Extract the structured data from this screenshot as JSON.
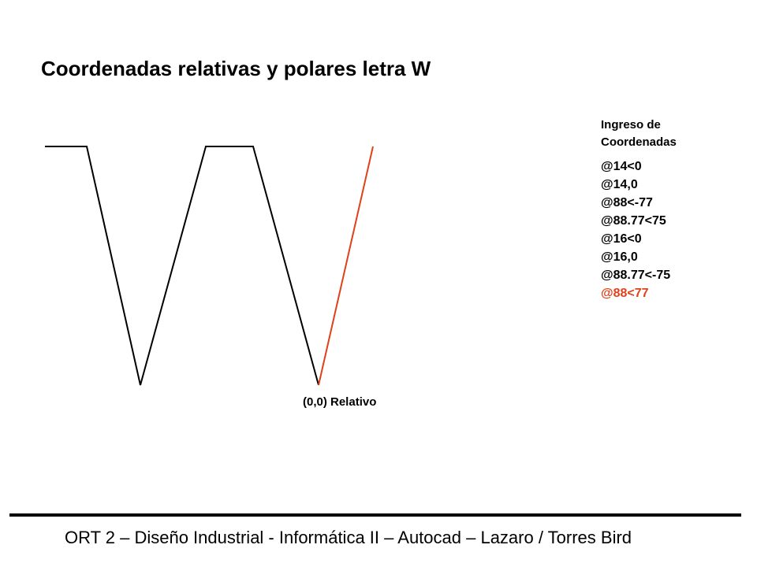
{
  "title": "Coordenadas relativas y polares letra W",
  "panel": {
    "heading": [
      "Ingreso de",
      "Coordenadas"
    ],
    "commands": [
      "@14<0",
      "@14,0",
      "@88<-77",
      "@88.77<75",
      "@16<0",
      "@16,0",
      "@88.77<-75"
    ],
    "highlight": "@88<77"
  },
  "origin_label": "(0,0) Relativo",
  "footer": "ORT 2 – Diseño Industrial - Informática II – Autocad – Lazaro / Torres Bird"
}
